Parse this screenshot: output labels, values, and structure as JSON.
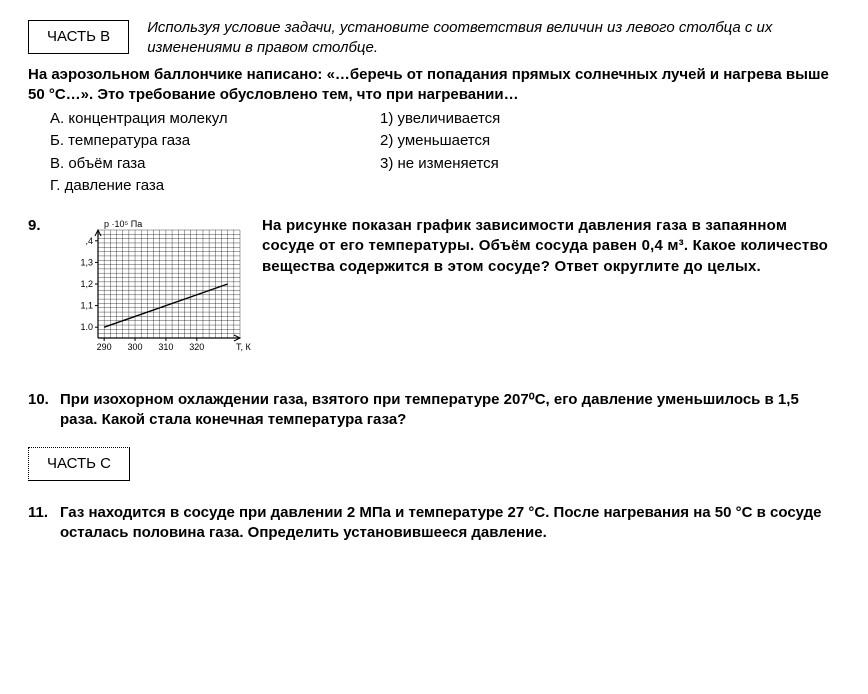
{
  "partB": {
    "label": "ЧАСТЬ В",
    "instruction": "Используя условие задачи, установите соответствия величин из левого столбца с их изменениями в правом столбце."
  },
  "q8": {
    "stem": "На аэрозольном баллончике написано: «…беречь от попадания прямых солнечных лучей и нагрева выше 50 °С…». Это требование обусловлено тем, что при нагревании…",
    "left": [
      "А. концентрация молекул",
      "Б. температура газа",
      "В. объём газа",
      "Г. давление газа"
    ],
    "right": [
      "1) увеличивается",
      "2) уменьшается",
      "3) не изменяется"
    ]
  },
  "q9": {
    "number": "9.",
    "text": "На рисунке показан график зависимости давления газа в запаянном сосуде от его температуры. Объём сосуда равен 0,4 м³. Какое количество вещества содержится в этом сосуде? Ответ округлите до целых.",
    "chart": {
      "type": "line-on-grid",
      "width": 180,
      "height": 140,
      "grid_color": "#000000",
      "background": "#ffffff",
      "y_label": "p ·10⁵ Па",
      "y_label_fontsize": 9,
      "x_label": "T, К",
      "x_label_fontsize": 9,
      "y_ticks": [
        1.0,
        1.1,
        1.2,
        1.3,
        1.4
      ],
      "y_tick_labels": [
        "1.0",
        "1,1",
        "1,2",
        "1,3",
        ",4"
      ],
      "x_ticks": [
        290,
        300,
        310,
        320
      ],
      "x_tick_labels": [
        "290",
        "300",
        "310",
        "320"
      ],
      "y_range": [
        0.95,
        1.45
      ],
      "x_range": [
        288,
        334
      ],
      "grid_step_x": 2,
      "grid_step_y": 0.02,
      "line": {
        "points": [
          [
            290,
            1.0
          ],
          [
            330,
            1.2
          ]
        ],
        "color": "#000000",
        "width": 1.4
      }
    }
  },
  "q10": {
    "number": "10.",
    "text": "При изохорном охлаждении газа, взятого при температуре 207⁰С, его давление уменьшилось в 1,5 раза. Какой стала конечная температура газа?"
  },
  "partC": {
    "label": "ЧАСТЬ С"
  },
  "q11": {
    "number": "11.",
    "text": "Газ находится в сосуде при давлении 2 МПа и температуре 27 °С. После нагревания на 50 °С в сосуде осталась половина газа. Определить установившееся давление."
  }
}
